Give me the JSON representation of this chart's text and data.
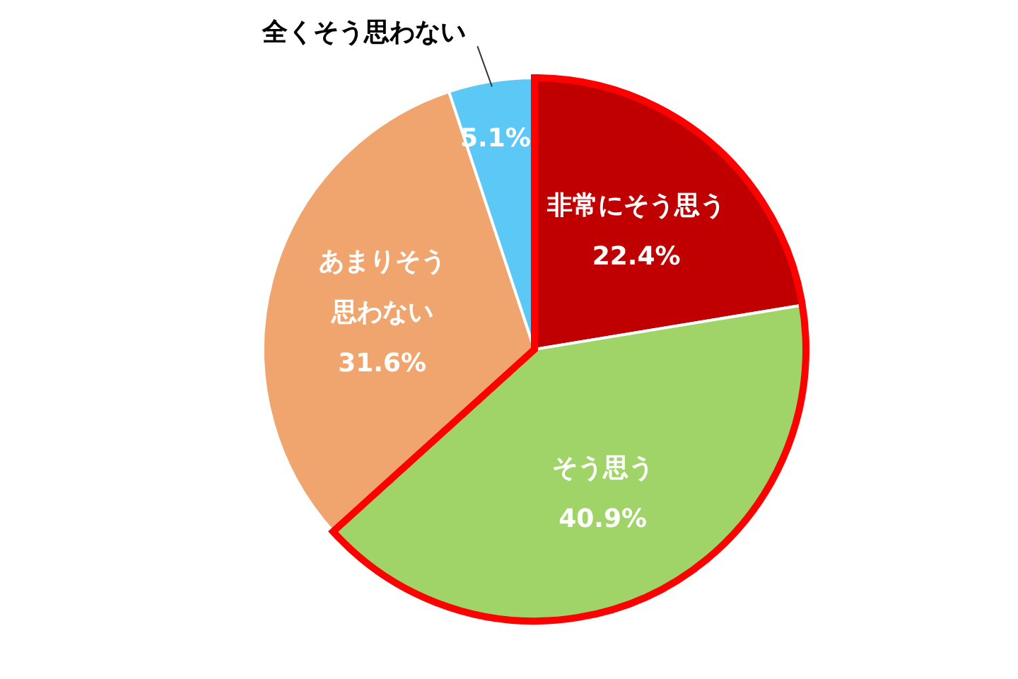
{
  "chart_data": {
    "type": "pie",
    "categories": [
      "非常にそう思う",
      "そう思う",
      "あまりそう思わない",
      "全くそう思わない"
    ],
    "values": [
      22.4,
      40.9,
      31.6,
      5.1
    ],
    "colors": [
      "#c00000",
      "#a0d468",
      "#f0a46e",
      "#5bc8f5"
    ],
    "value_labels": [
      "22.4%",
      "40.9%",
      "31.6%",
      "5.1%"
    ]
  }
}
